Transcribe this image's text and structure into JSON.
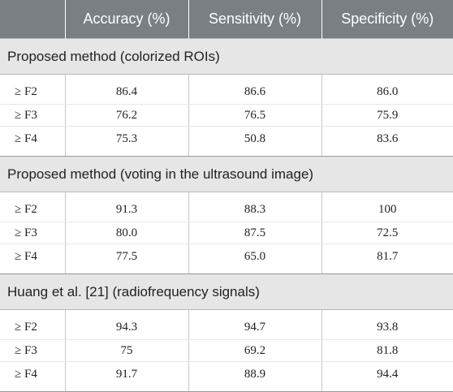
{
  "headers": [
    "",
    "Accuracy (%)",
    "Sensitivity (%)",
    "Specificity (%)"
  ],
  "sections": [
    {
      "title": "Proposed method (colorized ROIs)",
      "rows": [
        {
          "label": "≥ F2",
          "accuracy": "86.4",
          "sensitivity": "86.6",
          "specificity": "86.0"
        },
        {
          "label": "≥ F3",
          "accuracy": "76.2",
          "sensitivity": "76.5",
          "specificity": "75.9"
        },
        {
          "label": "≥ F4",
          "accuracy": "75.3",
          "sensitivity": "50.8",
          "specificity": "83.6"
        }
      ]
    },
    {
      "title": "Proposed method (voting in the ultrasound image)",
      "rows": [
        {
          "label": "≥ F2",
          "accuracy": "91.3",
          "sensitivity": "88.3",
          "specificity": "100"
        },
        {
          "label": "≥ F3",
          "accuracy": "80.0",
          "sensitivity": "87.5",
          "specificity": "72.5"
        },
        {
          "label": "≥ F4",
          "accuracy": "77.5",
          "sensitivity": "65.0",
          "specificity": "81.7"
        }
      ]
    },
    {
      "title": "Huang et al. [21] (radiofrequency signals)",
      "rows": [
        {
          "label": "≥ F2",
          "accuracy": "94.3",
          "sensitivity": "94.7",
          "specificity": "93.8"
        },
        {
          "label": "≥ F3",
          "accuracy": "75",
          "sensitivity": "69.2",
          "specificity": "81.8"
        },
        {
          "label": "≥ F4",
          "accuracy": "91.7",
          "sensitivity": "88.9",
          "specificity": "94.4"
        }
      ]
    }
  ]
}
